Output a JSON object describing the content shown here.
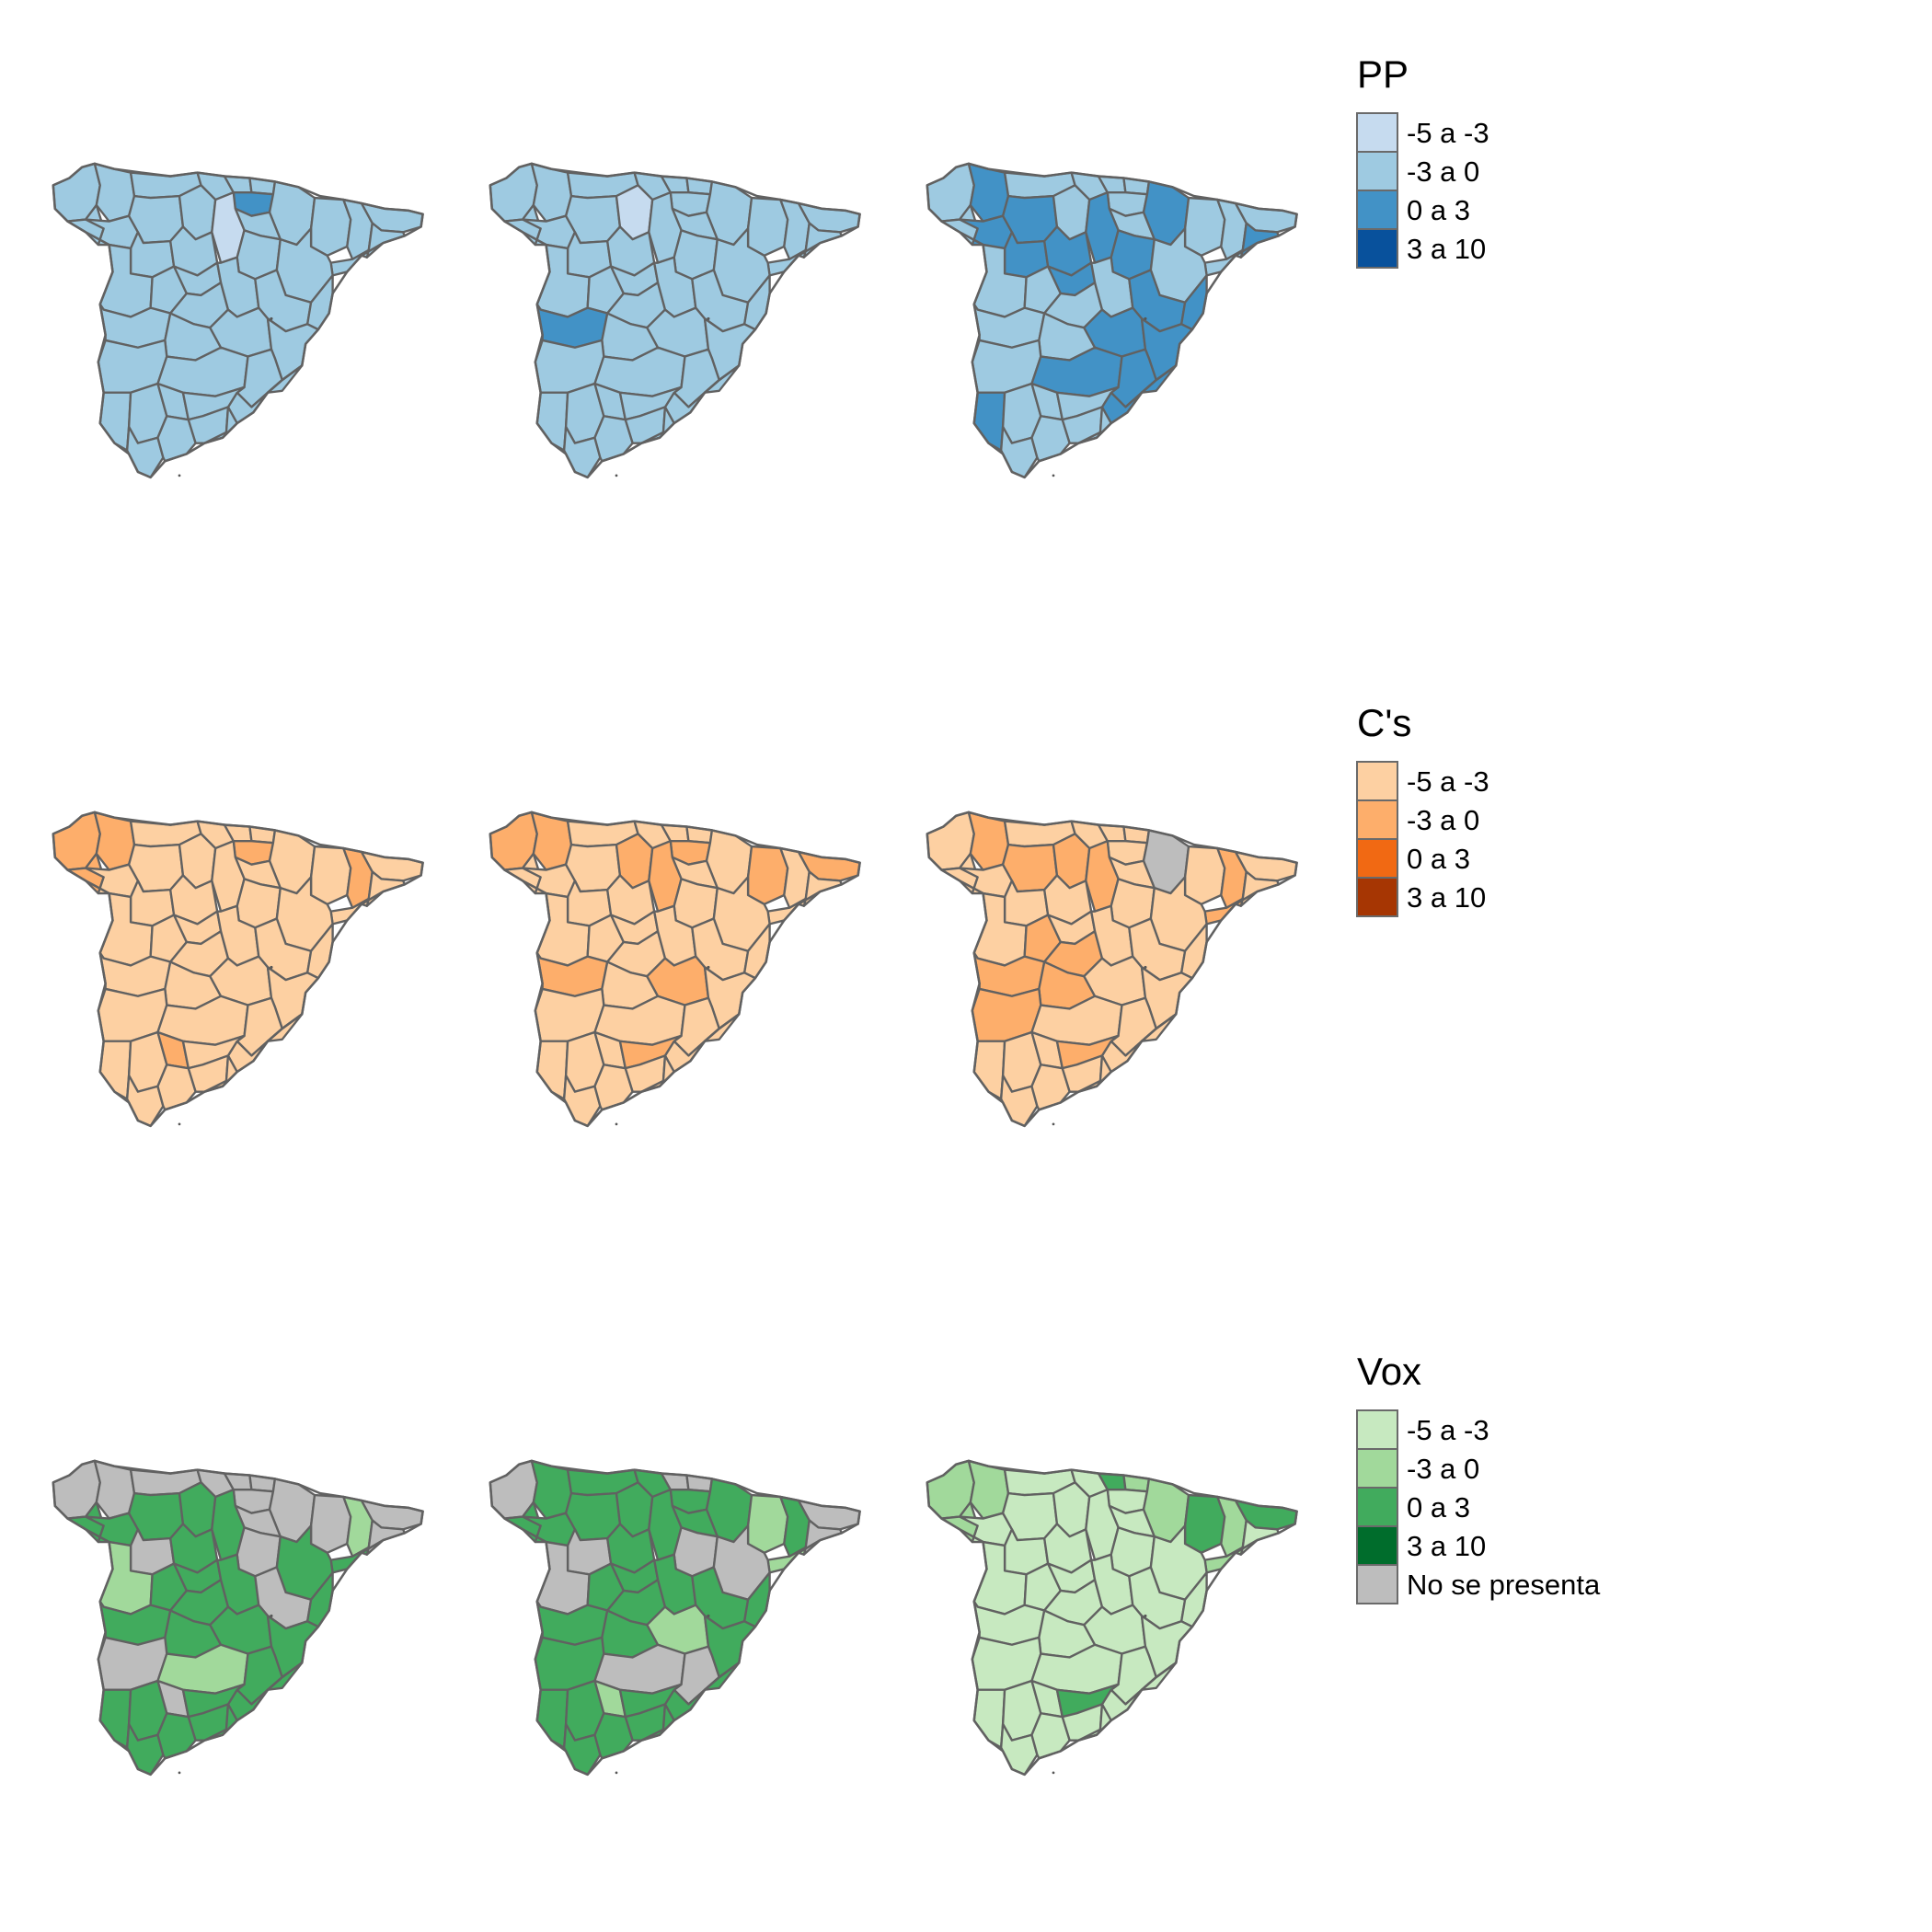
{
  "colors": {
    "PP": {
      "-5 a -3": "#c6dbef",
      "-3 a 0": "#9ecae1",
      "0 a 3": "#4292c6",
      "3 a 10": "#08519c"
    },
    "Cs": {
      "-5 a -3": "#fdd0a2",
      "-3 a 0": "#fdae6b",
      "0 a 3": "#f16913",
      "3 a 10": "#a63603"
    },
    "Vox": {
      "-5 a -3": "#c7e9c0",
      "-3 a 0": "#a1d99b",
      "0 a 3": "#41ab5d",
      "3 a 10": "#006d2c"
    },
    "na": "#bdbdbd"
  },
  "legends": [
    {
      "party": "PP",
      "title": "PP",
      "items": [
        "-5 a -3",
        "-3 a 0",
        "0 a 3",
        "3 a 10"
      ]
    },
    {
      "party": "Cs",
      "title": "C's",
      "items": [
        "-5 a -3",
        "-3 a 0",
        "0 a 3",
        "3 a 10"
      ]
    },
    {
      "party": "Vox",
      "title": "Vox",
      "items": [
        "-5 a -3",
        "-3 a 0",
        "0 a 3",
        "3 a 10",
        "No se presenta"
      ]
    }
  ],
  "maps": [
    {
      "party": "PP",
      "default": "-3 a 0",
      "provinces": {
        "alava": "0 a 3",
        "burgos": "-5 a -3"
      }
    },
    {
      "party": "PP",
      "default": "-3 a 0",
      "provinces": {
        "palencia": "-5 a -3",
        "caceres": "0 a 3"
      }
    },
    {
      "party": "PP",
      "default": "-3 a 0",
      "provinces": {
        "lugo": "0 a 3",
        "ourense": "0 a 3",
        "burgos": "0 a 3",
        "soria": "0 a 3",
        "navarra": "0 a 3",
        "barcelona": "0 a 3",
        "leon": "0 a 3",
        "zamora": "0 a 3",
        "valladolid": "0 a 3",
        "segovia": "0 a 3",
        "cuenca": "0 a 3",
        "ciudadreal": "0 a 3",
        "albacete": "0 a 3",
        "valencia": "0 a 3",
        "castellon": "0 a 3",
        "teruel": "0 a 3",
        "alicante": "0 a 3",
        "murcia": "0 a 3",
        "huelva": "0 a 3"
      }
    },
    {
      "party": "Cs",
      "default": "-5 a -3",
      "provinces": {
        "lugo": "-3 a 0",
        "coruna": "-3 a 0",
        "alava": "-3 a 0",
        "lleida": "-3 a 0",
        "cordoba": "-3 a 0",
        "pontevedra": "-3 a 0"
      }
    },
    {
      "party": "Cs",
      "default": "-5 a -3",
      "provinces": {
        "lugo": "-3 a 0",
        "coruna": "-3 a 0",
        "palencia": "-3 a 0",
        "burgos": "-3 a 0",
        "alava": "-3 a 0",
        "huesca": "-3 a 0",
        "girona": "-3 a 0",
        "caceres": "-3 a 0",
        "cuenca": "-3 a 0",
        "jaen": "-3 a 0"
      }
    },
    {
      "party": "Cs",
      "default": "-5 a -3",
      "provinces": {
        "lugo": "-3 a 0",
        "leon": "-3 a 0",
        "palencia": "-3 a 0",
        "burgos": "-3 a 0",
        "lleida": "-3 a 0",
        "tarragona": "-3 a 0",
        "caceres": "-3 a 0",
        "badajoz": "-3 a 0",
        "toledo": "-3 a 0",
        "avila": "-3 a 0",
        "madrid": "-3 a 0",
        "jaen": "-3 a 0",
        "navarra": "No se presenta"
      }
    },
    {
      "party": "Vox",
      "default": "0 a 3",
      "provinces": {
        "coruna": "No se presenta",
        "lugo": "No se presenta",
        "asturias": "No se presenta",
        "cantabria": "No se presenta",
        "vizcaya": "No se presenta",
        "alava": "No se presenta",
        "guipuzcoa": "No se presenta",
        "navarra": "No se presenta",
        "larioja": "No se presenta",
        "huesca": "No se presenta",
        "girona": "No se presenta",
        "barcelona": "No se presenta",
        "zamora": "No se presenta",
        "soria": "No se presenta",
        "teruel": "No se presenta",
        "badajoz": "No se presenta",
        "cordoba": "No se presenta",
        "lleida": "-3 a 0",
        "salamanca": "-3 a 0",
        "ciudadreal": "-3 a 0"
      }
    },
    {
      "party": "Vox",
      "default": "0 a 3",
      "provinces": {
        "coruna": "No se presenta",
        "vizcaya": "No se presenta",
        "guipuzcoa": "No se presenta",
        "salamanca": "No se presenta",
        "zamora": "No se presenta",
        "soria": "No se presenta",
        "zaragoza": "No se presenta",
        "ciudadreal": "No se presenta",
        "albacete": "No se presenta",
        "girona": "No se presenta",
        "barcelona": "No se presenta",
        "huesca": "-3 a 0",
        "tarragona": "-3 a 0",
        "cuenca": "-3 a 0",
        "cordoba": "-3 a 0"
      }
    },
    {
      "party": "Vox",
      "default": "-5 a -3",
      "provinces": {
        "coruna": "-3 a 0",
        "lugo": "-3 a 0",
        "pontevedra": "-3 a 0",
        "guipuzcoa": "-3 a 0",
        "navarra": "-3 a 0",
        "huesca": "0 a 3",
        "lleida": "-3 a 0",
        "tarragona": "-3 a 0",
        "girona": "0 a 3",
        "jaen": "0 a 3",
        "vizcaya": "0 a 3"
      }
    }
  ]
}
